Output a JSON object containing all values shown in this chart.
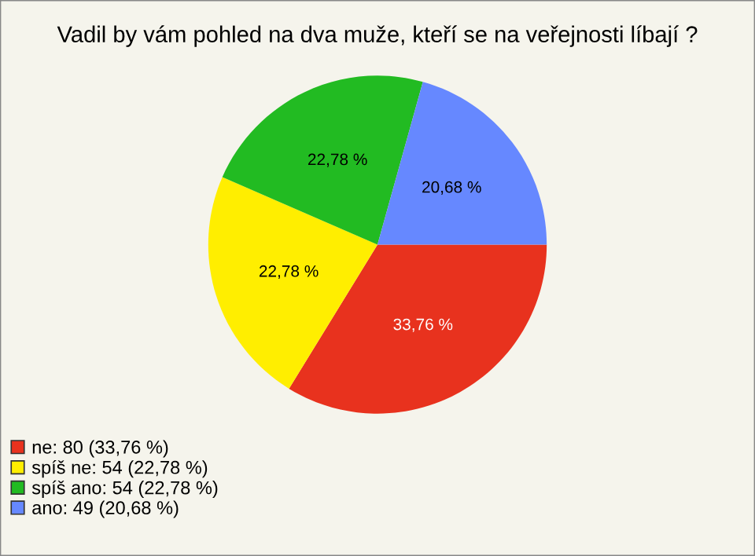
{
  "chart_data": {
    "type": "pie",
    "title": "Vadil by vám pohled na dva muže, kteří se na veřejnosti líbají ?",
    "categories": [
      "ne: 80 (33,76 %)",
      "spíš ne: 54 (22,78 %)",
      "spíš ano: 54 (22,78 %)",
      "ano: 49 (20,68 %)"
    ],
    "values": [
      33.76,
      22.78,
      22.78,
      20.68
    ],
    "value_labels": [
      "33,76 %",
      "22,78 %",
      "22,78 %",
      "20,68 %"
    ],
    "colors": [
      "#e8321e",
      "#ffee00",
      "#22bb22",
      "#6688ff"
    ],
    "legend": "bottom left"
  }
}
